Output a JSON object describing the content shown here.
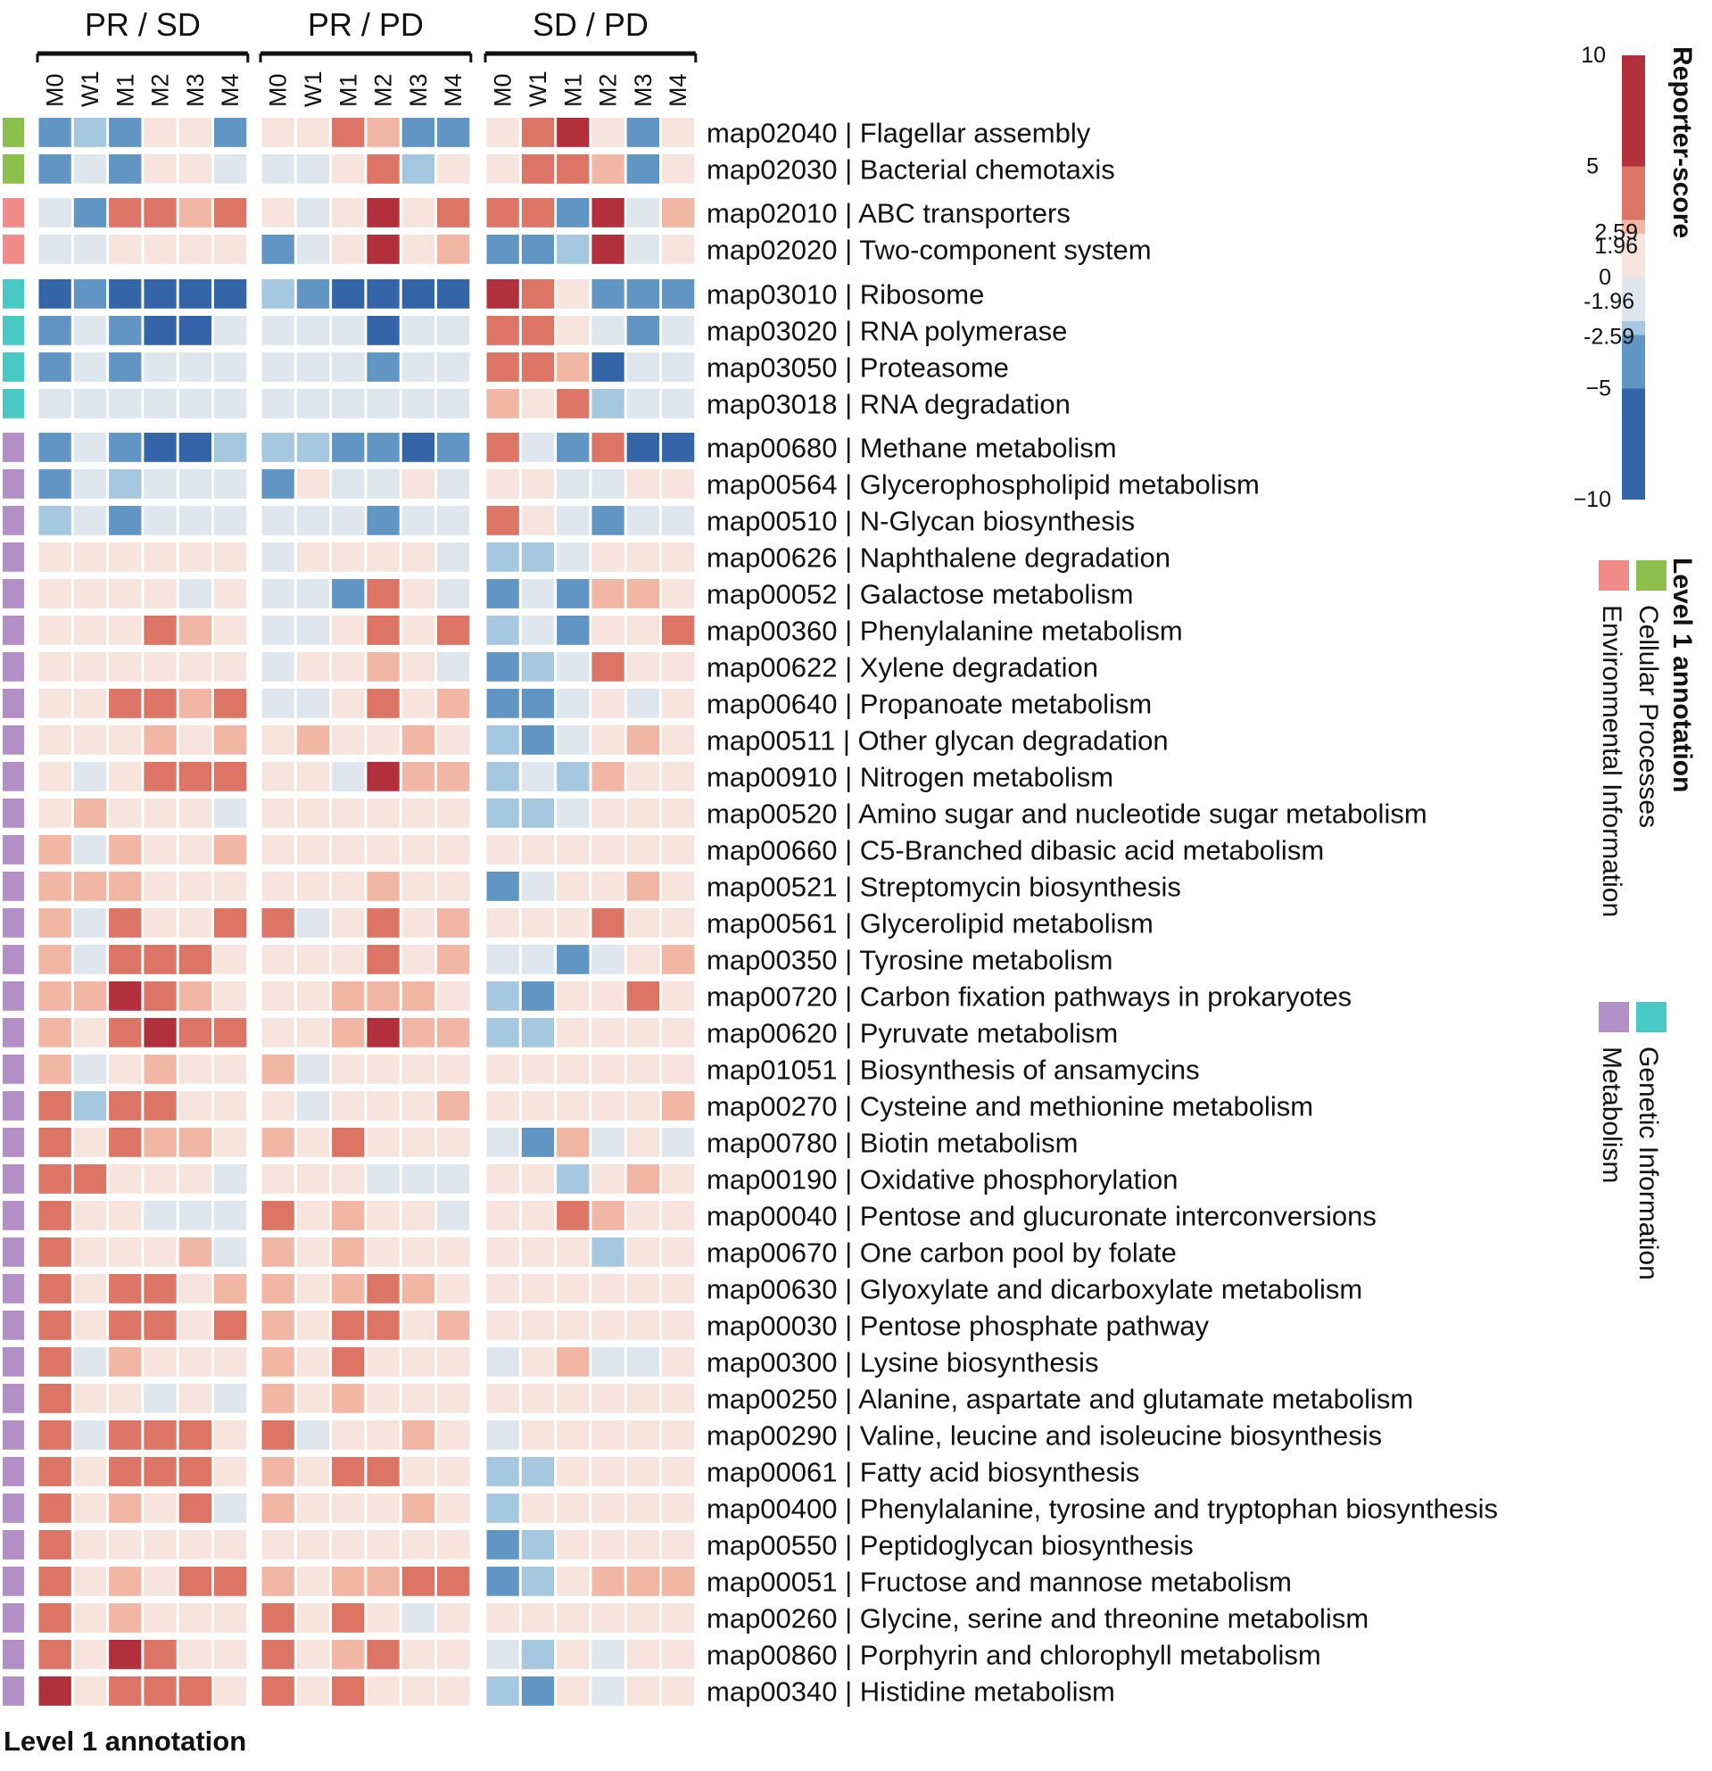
{
  "chart_data": {
    "type": "heatmap",
    "title": "",
    "group_labels": [
      "PR / SD",
      "PR / PD",
      "SD / PD"
    ],
    "column_labels": [
      "M0",
      "W1",
      "M1",
      "M2",
      "M3",
      "M4"
    ],
    "row_labels": [
      "map02040 | Flagellar assembly",
      "map02030 | Bacterial chemotaxis",
      "map02010 | ABC transporters",
      "map02020 | Two-component system",
      "map03010 | Ribosome",
      "map03020 | RNA polymerase",
      "map03050 | Proteasome",
      "map03018 | RNA degradation",
      "map00680 | Methane metabolism",
      "map00564 | Glycerophospholipid metabolism",
      "map00510 | N-Glycan biosynthesis",
      "map00626 | Naphthalene degradation",
      "map00052 | Galactose metabolism",
      "map00360 | Phenylalanine metabolism",
      "map00622 | Xylene degradation",
      "map00640 | Propanoate metabolism",
      "map00511 | Other glycan degradation",
      "map00910 | Nitrogen metabolism",
      "map00520 | Amino sugar and nucleotide sugar metabolism",
      "map00660 | C5-Branched dibasic acid metabolism",
      "map00521 | Streptomycin biosynthesis",
      "map00561 | Glycerolipid metabolism",
      "map00350 | Tyrosine metabolism",
      "map00720 | Carbon fixation pathways in prokaryotes",
      "map00620 | Pyruvate metabolism",
      "map01051 | Biosynthesis of ansamycins",
      "map00270 | Cysteine and methionine metabolism",
      "map00780 | Biotin metabolism",
      "map00190 | Oxidative phosphorylation",
      "map00040 | Pentose and glucuronate interconversions",
      "map00670 | One carbon pool by folate",
      "map00630 | Glyoxylate and dicarboxylate metabolism",
      "map00030 | Pentose phosphate pathway",
      "map00300 | Lysine biosynthesis",
      "map00250 | Alanine, aspartate and glutamate metabolism",
      "map00290 | Valine, leucine and isoleucine biosynthesis",
      "map00061 | Fatty acid biosynthesis",
      "map00400 | Phenylalanine, tyrosine and tryptophan biosynthesis",
      "map00550 | Peptidoglycan biosynthesis",
      "map00051 | Fructose and mannose metabolism",
      "map00260 | Glycine, serine and threonine metabolism",
      "map00860 | Porphyrin and chlorophyll metabolism",
      "map00340 | Histidine metabolism"
    ],
    "row_annotation": [
      "Cellular Processes",
      "Cellular Processes",
      "Environmental Information",
      "Environmental Information",
      "Genetic Information",
      "Genetic Information",
      "Genetic Information",
      "Genetic Information",
      "Metabolism",
      "Metabolism",
      "Metabolism",
      "Metabolism",
      "Metabolism",
      "Metabolism",
      "Metabolism",
      "Metabolism",
      "Metabolism",
      "Metabolism",
      "Metabolism",
      "Metabolism",
      "Metabolism",
      "Metabolism",
      "Metabolism",
      "Metabolism",
      "Metabolism",
      "Metabolism",
      "Metabolism",
      "Metabolism",
      "Metabolism",
      "Metabolism",
      "Metabolism",
      "Metabolism",
      "Metabolism",
      "Metabolism",
      "Metabolism",
      "Metabolism",
      "Metabolism",
      "Metabolism",
      "Metabolism",
      "Metabolism",
      "Metabolism",
      "Metabolism",
      "Metabolism"
    ],
    "values": [
      [
        -3,
        -2.2,
        -3,
        1,
        1,
        -3,
        1,
        1,
        3,
        2,
        -3,
        -3,
        1,
        3,
        8,
        1,
        -3,
        1
      ],
      [
        -3,
        -1,
        -3,
        1,
        1,
        -1,
        -1,
        -1,
        1,
        3,
        -2.2,
        1,
        1,
        3,
        3,
        2,
        -3,
        1
      ],
      [
        -1,
        -3,
        3,
        3,
        2,
        3,
        1,
        -1,
        1,
        8,
        1,
        3,
        3,
        3,
        -3,
        8,
        -1,
        2
      ],
      [
        -1,
        -1,
        1,
        1,
        1,
        1,
        -3,
        -1,
        1,
        8,
        1,
        2,
        -3,
        -3,
        -2.2,
        8,
        -1,
        1
      ],
      [
        -7,
        -3,
        -7,
        -7,
        -7,
        -7,
        -2.2,
        -3,
        -7,
        -7,
        -7,
        -7,
        8,
        3,
        1,
        -3,
        -3,
        -3
      ],
      [
        -3,
        -1,
        -3,
        -7,
        -7,
        -1,
        -1,
        -1,
        -1,
        -7,
        -1,
        -1,
        3,
        3,
        1,
        -1,
        -3,
        -1
      ],
      [
        -3,
        -1,
        -3,
        -1,
        -1,
        -1,
        -1,
        -1,
        -1,
        -3,
        -1,
        -1,
        3,
        3,
        2,
        -7,
        -1,
        -1
      ],
      [
        -1,
        -1,
        -1,
        -1,
        -1,
        -1,
        -1,
        -1,
        -1,
        -1,
        -1,
        -1,
        2,
        1,
        3,
        -2.2,
        -1,
        -1
      ],
      [
        -3,
        -1,
        -3,
        -7,
        -7,
        -2.2,
        -2.2,
        -2.2,
        -3,
        -3,
        -7,
        -3,
        3,
        -1,
        -3,
        3,
        -7,
        -7
      ],
      [
        -3,
        -1,
        -2.2,
        -1,
        -1,
        -1,
        -3,
        1,
        -1,
        -1,
        1,
        -1,
        1,
        1,
        -1,
        -1,
        1,
        1
      ],
      [
        -2.2,
        -1,
        -3,
        -1,
        -1,
        -1,
        -1,
        -1,
        -1,
        -3,
        -1,
        -1,
        3,
        1,
        -1,
        -3,
        -1,
        -1
      ],
      [
        1,
        1,
        1,
        1,
        1,
        1,
        -1,
        1,
        1,
        1,
        1,
        -1,
        -2.2,
        -2.2,
        -1,
        1,
        1,
        1
      ],
      [
        1,
        1,
        1,
        1,
        -1,
        1,
        -1,
        -1,
        -3,
        3,
        1,
        -1,
        -3,
        -1,
        -3,
        2,
        2,
        1
      ],
      [
        1,
        1,
        1,
        3,
        2,
        1,
        -1,
        -1,
        1,
        3,
        1,
        3,
        -2.2,
        -1,
        -3,
        1,
        1,
        3
      ],
      [
        1,
        1,
        1,
        1,
        1,
        1,
        -1,
        1,
        1,
        2,
        1,
        -1,
        -3,
        -2.2,
        -1,
        3,
        1,
        1
      ],
      [
        1,
        1,
        3,
        3,
        2,
        3,
        -1,
        -1,
        1,
        3,
        1,
        2,
        -3,
        -3,
        -1,
        1,
        -1,
        1
      ],
      [
        1,
        1,
        1,
        2,
        1,
        2,
        1,
        2,
        1,
        1,
        2,
        1,
        -2.2,
        -3,
        -1,
        1,
        2,
        1
      ],
      [
        1,
        -1,
        1,
        3,
        3,
        3,
        1,
        1,
        -1,
        8,
        2,
        2,
        -2.2,
        -1,
        -2.2,
        2,
        1,
        1
      ],
      [
        1,
        2,
        1,
        1,
        1,
        -1,
        1,
        1,
        1,
        1,
        1,
        1,
        -2.2,
        -2.2,
        -1,
        1,
        1,
        1
      ],
      [
        2,
        -1,
        2,
        1,
        1,
        2,
        1,
        1,
        1,
        1,
        1,
        1,
        1,
        1,
        1,
        1,
        1,
        1
      ],
      [
        2,
        2,
        2,
        1,
        1,
        1,
        1,
        1,
        1,
        2,
        1,
        1,
        -3,
        -1,
        1,
        1,
        2,
        1
      ],
      [
        2,
        -1,
        3,
        1,
        1,
        3,
        3,
        -1,
        1,
        3,
        1,
        2,
        1,
        1,
        1,
        3,
        1,
        1
      ],
      [
        2,
        -1,
        3,
        3,
        3,
        1,
        1,
        1,
        1,
        3,
        1,
        2,
        -1,
        -1,
        -3,
        -1,
        1,
        2
      ],
      [
        2,
        2,
        8,
        3,
        2,
        1,
        1,
        1,
        2,
        2,
        2,
        1,
        -2.2,
        -3,
        1,
        1,
        3,
        1
      ],
      [
        2,
        1,
        3,
        8,
        3,
        3,
        1,
        1,
        2,
        8,
        2,
        2,
        -2.2,
        -2.2,
        1,
        1,
        1,
        1
      ],
      [
        2,
        -1,
        1,
        2,
        1,
        1,
        2,
        -1,
        1,
        1,
        1,
        1,
        1,
        1,
        1,
        1,
        1,
        1
      ],
      [
        3,
        -2.2,
        3,
        3,
        1,
        1,
        1,
        -1,
        1,
        1,
        1,
        2,
        1,
        1,
        1,
        1,
        1,
        2
      ],
      [
        3,
        1,
        3,
        2,
        2,
        1,
        2,
        1,
        3,
        1,
        1,
        1,
        -1,
        -3,
        2,
        -1,
        1,
        -1
      ],
      [
        3,
        3,
        1,
        1,
        1,
        -1,
        1,
        1,
        1,
        -1,
        -1,
        -1,
        1,
        1,
        -2.2,
        1,
        2,
        1
      ],
      [
        3,
        1,
        1,
        -1,
        -1,
        -1,
        3,
        1,
        2,
        1,
        1,
        -1,
        1,
        1,
        3,
        2,
        1,
        1
      ],
      [
        3,
        1,
        1,
        1,
        2,
        -1,
        2,
        1,
        2,
        1,
        1,
        1,
        1,
        1,
        1,
        -2.2,
        1,
        1
      ],
      [
        3,
        1,
        3,
        3,
        1,
        2,
        2,
        1,
        2,
        3,
        2,
        1,
        1,
        1,
        1,
        1,
        1,
        1
      ],
      [
        3,
        1,
        3,
        3,
        1,
        3,
        2,
        1,
        3,
        3,
        1,
        2,
        1,
        1,
        1,
        1,
        1,
        1
      ],
      [
        3,
        -1,
        2,
        1,
        1,
        1,
        2,
        1,
        3,
        1,
        1,
        1,
        -1,
        1,
        2,
        -1,
        -1,
        1
      ],
      [
        3,
        1,
        1,
        -1,
        1,
        -1,
        2,
        1,
        2,
        1,
        1,
        1,
        1,
        1,
        1,
        1,
        1,
        1
      ],
      [
        3,
        -1,
        3,
        3,
        3,
        1,
        3,
        -1,
        1,
        1,
        2,
        1,
        -1,
        1,
        1,
        1,
        1,
        1
      ],
      [
        3,
        1,
        3,
        3,
        3,
        1,
        2,
        1,
        3,
        3,
        1,
        1,
        -2.2,
        -2.2,
        1,
        1,
        1,
        1
      ],
      [
        3,
        1,
        2,
        1,
        3,
        -1,
        2,
        1,
        1,
        1,
        2,
        1,
        -2.2,
        1,
        1,
        1,
        1,
        1
      ],
      [
        3,
        1,
        1,
        1,
        1,
        1,
        1,
        1,
        1,
        1,
        1,
        1,
        -3,
        -2.2,
        1,
        1,
        1,
        1
      ],
      [
        3,
        1,
        2,
        1,
        3,
        3,
        2,
        1,
        2,
        2,
        3,
        3,
        -3,
        -2.2,
        1,
        2,
        2,
        2
      ],
      [
        3,
        1,
        2,
        1,
        1,
        1,
        3,
        1,
        3,
        1,
        -1,
        1,
        1,
        1,
        1,
        1,
        1,
        1
      ],
      [
        3,
        1,
        8,
        3,
        1,
        1,
        3,
        1,
        2,
        3,
        1,
        1,
        -1,
        -2.2,
        1,
        -1,
        1,
        1
      ],
      [
        8,
        1,
        3,
        3,
        3,
        1,
        3,
        1,
        3,
        1,
        1,
        1,
        -2.2,
        -3,
        1,
        -1,
        1,
        1
      ]
    ],
    "colorbar": {
      "title": "Reporter-score",
      "tick_labels": [
        "10",
        "5",
        "2.59",
        "1.96",
        "0",
        "-1.96",
        "-2.59",
        "−5",
        "−10"
      ],
      "tick_values": [
        10,
        5,
        2.59,
        1.96,
        0,
        -1.96,
        -2.59,
        -5,
        -10
      ],
      "range": [
        -10,
        10
      ],
      "bands": [
        {
          "from": 5,
          "to": 10,
          "color": "#b2303c"
        },
        {
          "from": 2.59,
          "to": 5,
          "color": "#dc7566"
        },
        {
          "from": 1.96,
          "to": 2.59,
          "color": "#f2b6a5"
        },
        {
          "from": 0,
          "to": 1.96,
          "color": "#f7e5dd"
        },
        {
          "from": -1.96,
          "to": 0,
          "color": "#e0e6ed"
        },
        {
          "from": -2.59,
          "to": -1.96,
          "color": "#a5c7df"
        },
        {
          "from": -5,
          "to": -2.59,
          "color": "#6095c4"
        },
        {
          "from": -10,
          "to": -5,
          "color": "#3465a8"
        }
      ]
    },
    "annotation_legend": {
      "title": "Level 1 annotation",
      "items": [
        {
          "label": "Cellular Processes",
          "color": "#8ac04b"
        },
        {
          "label": "Environmental Information",
          "color": "#ef8c8a"
        },
        {
          "label": "Genetic Information",
          "color": "#48c9c6"
        },
        {
          "label": "Metabolism",
          "color": "#b38fc8"
        }
      ]
    },
    "bottom_label": "Level 1 annotation"
  }
}
